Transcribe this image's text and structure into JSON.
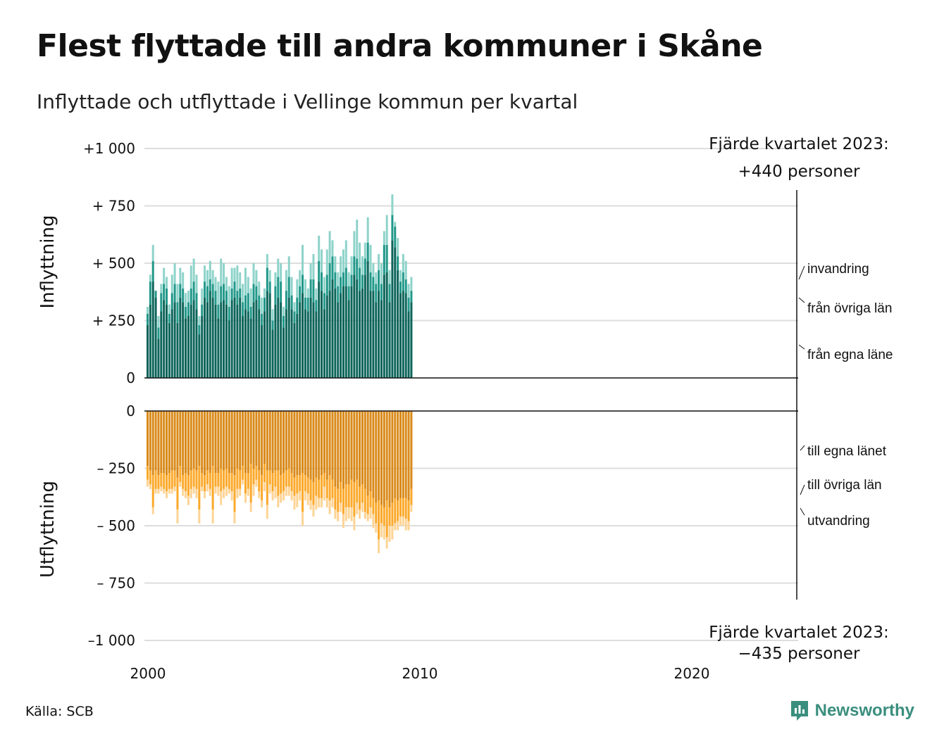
{
  "title": "Flest flyttade till andra kommuner i Skåne",
  "subtitle": "Inflyttade och utflyttade i Vellinge kommun per kvartal",
  "source": "Källa: SCB",
  "brand": "Newsworthy",
  "colors": {
    "in_own": "#0c6459",
    "in_other": "#21988a",
    "in_abroad": "#8ed3ca",
    "out_own": "#d98a1a",
    "out_other": "#fba92b",
    "out_abroad": "#fdd496",
    "grid": "#dddddd",
    "brand": "#3a8e7e"
  },
  "annotations": {
    "in_line1": "Fjärde kvartalet 2023:",
    "in_line2": "+440 personer",
    "out_line1": "Fjärde kvartalet 2023:",
    "out_line2": "−435 personer"
  },
  "chart_data": {
    "type": "bar",
    "stacked": true,
    "x_start": "2000 Q1",
    "x_end": "2023 Q4",
    "x_ticks": [
      "2000",
      "2010",
      "2020"
    ],
    "panels": [
      {
        "ylabel": "Inflyttning",
        "y_ticks": [
          "+1 000",
          "+  750",
          "+  500",
          "+  250",
          "0"
        ],
        "y_tick_values": [
          1000,
          750,
          500,
          250,
          0
        ],
        "ylim": [
          0,
          1000
        ],
        "series": [
          {
            "name": "från egna läne",
            "values": [
              230,
              320,
              420,
              350,
              170,
              290,
              340,
              320,
              240,
              300,
              330,
              240,
              350,
              330,
              260,
              270,
              320,
              340,
              300,
              190,
              270,
              350,
              330,
              380,
              350,
              320,
              260,
              330,
              340,
              320,
              250,
              340,
              350,
              320,
              350,
              270,
              300,
              290,
              260,
              330,
              340,
              300,
              230,
              290,
              380,
              370,
              210,
              320,
              350,
              330,
              220,
              300,
              350,
              300,
              240,
              280,
              330,
              370,
              300,
              290,
              350,
              330,
              290,
              420,
              380,
              300,
              360,
              380,
              430,
              390,
              330,
              370,
              400,
              400,
              340,
              400,
              450,
              430,
              380,
              390,
              450,
              510,
              380,
              380,
              330,
              380,
              340,
              450,
              460,
              330,
              600,
              570,
              470,
              370,
              380,
              370,
              290,
              330
            ]
          },
          {
            "name": "från övriga län",
            "values": [
              50,
              100,
              90,
              30,
              50,
              80,
              70,
              70,
              40,
              70,
              80,
              90,
              60,
              60,
              50,
              60,
              70,
              80,
              70,
              40,
              50,
              70,
              70,
              50,
              60,
              60,
              60,
              70,
              70,
              60,
              60,
              50,
              70,
              60,
              40,
              60,
              60,
              80,
              50,
              80,
              60,
              60,
              50,
              60,
              100,
              50,
              40,
              80,
              90,
              90,
              50,
              80,
              90,
              60,
              50,
              70,
              70,
              80,
              50,
              60,
              80,
              100,
              50,
              90,
              80,
              70,
              90,
              120,
              100,
              70,
              70,
              70,
              60,
              80,
              60,
              50,
              80,
              90,
              100,
              60,
              70,
              80,
              80,
              60,
              80,
              90,
              70,
              130,
              120,
              80,
              110,
              90,
              60,
              50,
              80,
              60,
              60,
              50
            ]
          },
          {
            "name": "invandring",
            "values": [
              30,
              30,
              70,
              0,
              50,
              40,
              70,
              50,
              40,
              80,
              90,
              80,
              70,
              70,
              60,
              50,
              100,
              100,
              80,
              40,
              70,
              70,
              70,
              80,
              60,
              60,
              100,
              120,
              90,
              60,
              90,
              90,
              60,
              110,
              70,
              80,
              120,
              70,
              80,
              90,
              70,
              60,
              70,
              40,
              60,
              50,
              50,
              60,
              80,
              80,
              40,
              90,
              90,
              80,
              40,
              80,
              70,
              130,
              80,
              40,
              70,
              110,
              50,
              110,
              100,
              70,
              110,
              140,
              70,
              70,
              60,
              90,
              100,
              120,
              60,
              80,
              110,
              170,
              110,
              80,
              70,
              110,
              120,
              60,
              50,
              70,
              90,
              60,
              130,
              60,
              90,
              20,
              80,
              50,
              80,
              80,
              60,
              60
            ]
          }
        ]
      },
      {
        "ylabel": "Utflyttning",
        "y_ticks": [
          "0",
          "–  250",
          "–  500",
          "–  750",
          "–1 000"
        ],
        "y_tick_values": [
          0,
          -250,
          -500,
          -750,
          -1000
        ],
        "ylim": [
          -1000,
          0
        ],
        "series": [
          {
            "name": "till egna länet",
            "values": [
              -240,
              -260,
              -280,
              -260,
              -280,
              -270,
              -270,
              -280,
              -270,
              -260,
              -260,
              -290,
              -240,
              -280,
              -270,
              -280,
              -260,
              -250,
              -260,
              -240,
              -270,
              -280,
              -260,
              -270,
              -240,
              -270,
              -270,
              -250,
              -260,
              -250,
              -270,
              -270,
              -280,
              -250,
              -260,
              -240,
              -270,
              -270,
              -230,
              -250,
              -240,
              -260,
              -280,
              -230,
              -260,
              -260,
              -270,
              -260,
              -260,
              -280,
              -270,
              -260,
              -250,
              -270,
              -290,
              -280,
              -280,
              -270,
              -280,
              -290,
              -300,
              -310,
              -290,
              -300,
              -280,
              -270,
              -300,
              -280,
              -300,
              -330,
              -340,
              -310,
              -340,
              -320,
              -320,
              -300,
              -310,
              -300,
              -330,
              -320,
              -340,
              -370,
              -350,
              -380,
              -400,
              -390,
              -410,
              -420,
              -390,
              -420,
              -400,
              -380,
              -390,
              -380,
              -380,
              -380,
              -390,
              -340
            ]
          },
          {
            "name": "till övriga län",
            "values": [
              -60,
              -60,
              -140,
              -80,
              -60,
              -60,
              -70,
              -70,
              -70,
              -80,
              -70,
              -140,
              -70,
              -60,
              -80,
              -90,
              -80,
              -80,
              -80,
              -190,
              -60,
              -70,
              -60,
              -70,
              -190,
              -60,
              -60,
              -100,
              -80,
              -80,
              -70,
              -80,
              -160,
              -90,
              -80,
              -60,
              -90,
              -70,
              -170,
              -70,
              -60,
              -90,
              -110,
              -80,
              -150,
              -60,
              -80,
              -70,
              -110,
              -80,
              -80,
              -70,
              -80,
              -80,
              -80,
              -80,
              -70,
              -170,
              -70,
              -70,
              -90,
              -100,
              -80,
              -80,
              -100,
              -60,
              -80,
              -110,
              -80,
              -100,
              -100,
              -90,
              -110,
              -100,
              -100,
              -120,
              -150,
              -100,
              -100,
              -80,
              -100,
              -80,
              -70,
              -70,
              -90,
              -170,
              -80,
              -80,
              -160,
              -80,
              -100,
              -110,
              -90,
              -80,
              -80,
              -90,
              -90,
              -70
            ]
          },
          {
            "name": "utvandring",
            "values": [
              -30,
              -20,
              -30,
              -20,
              -20,
              -20,
              -20,
              -30,
              -20,
              -20,
              -20,
              -60,
              -20,
              -30,
              -30,
              -40,
              -40,
              -30,
              -40,
              -60,
              -20,
              -30,
              -30,
              -30,
              -60,
              -30,
              -40,
              -60,
              -40,
              -40,
              -20,
              -40,
              -50,
              -40,
              -30,
              -20,
              -40,
              -30,
              -40,
              -50,
              -30,
              -30,
              -30,
              -40,
              -60,
              -40,
              -40,
              -50,
              -50,
              -40,
              -40,
              -40,
              -40,
              -40,
              -60,
              -60,
              -40,
              -60,
              -40,
              -50,
              -40,
              -50,
              -60,
              -40,
              -40,
              -60,
              -40,
              -60,
              -40,
              -40,
              -40,
              -40,
              -60,
              -60,
              -50,
              -60,
              -60,
              -50,
              -40,
              -40,
              -30,
              -30,
              -50,
              -60,
              -40,
              -60,
              -60,
              -60,
              -50,
              -70,
              -60,
              -30,
              -40,
              -40,
              -40,
              -50,
              -40,
              -30
            ]
          }
        ]
      }
    ],
    "legend_in": [
      "invandring",
      "från övriga län",
      "från egna läne"
    ],
    "legend_out": [
      "till egna länet",
      "till övriga län",
      "utvandring"
    ]
  }
}
